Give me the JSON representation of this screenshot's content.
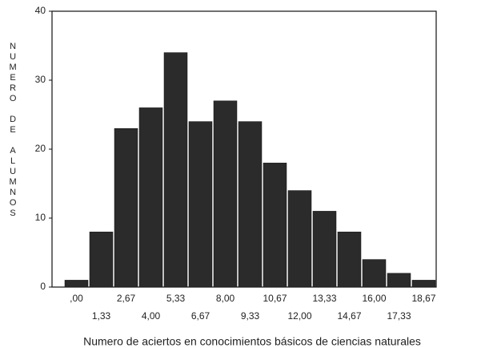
{
  "chart_data": {
    "type": "bar",
    "xlabel": "Numero  de aciertos en conocimientos básicos de ciencias naturales",
    "ylabel": "NUMERO DE ALUMNOS",
    "categories": [
      ",00",
      "1,33",
      "2,67",
      "4,00",
      "5,33",
      "6,67",
      "8,00",
      "9,33",
      "10,67",
      "12,00",
      "13,33",
      "14,67",
      "16,00",
      "17,33",
      "18,67"
    ],
    "values": [
      1,
      8,
      23,
      26,
      34,
      24,
      27,
      24,
      18,
      14,
      11,
      8,
      4,
      2,
      1
    ],
    "color": "#2b2b2b",
    "ylim": [
      0,
      40
    ],
    "yticks": [
      0,
      10,
      20,
      30,
      40
    ]
  }
}
